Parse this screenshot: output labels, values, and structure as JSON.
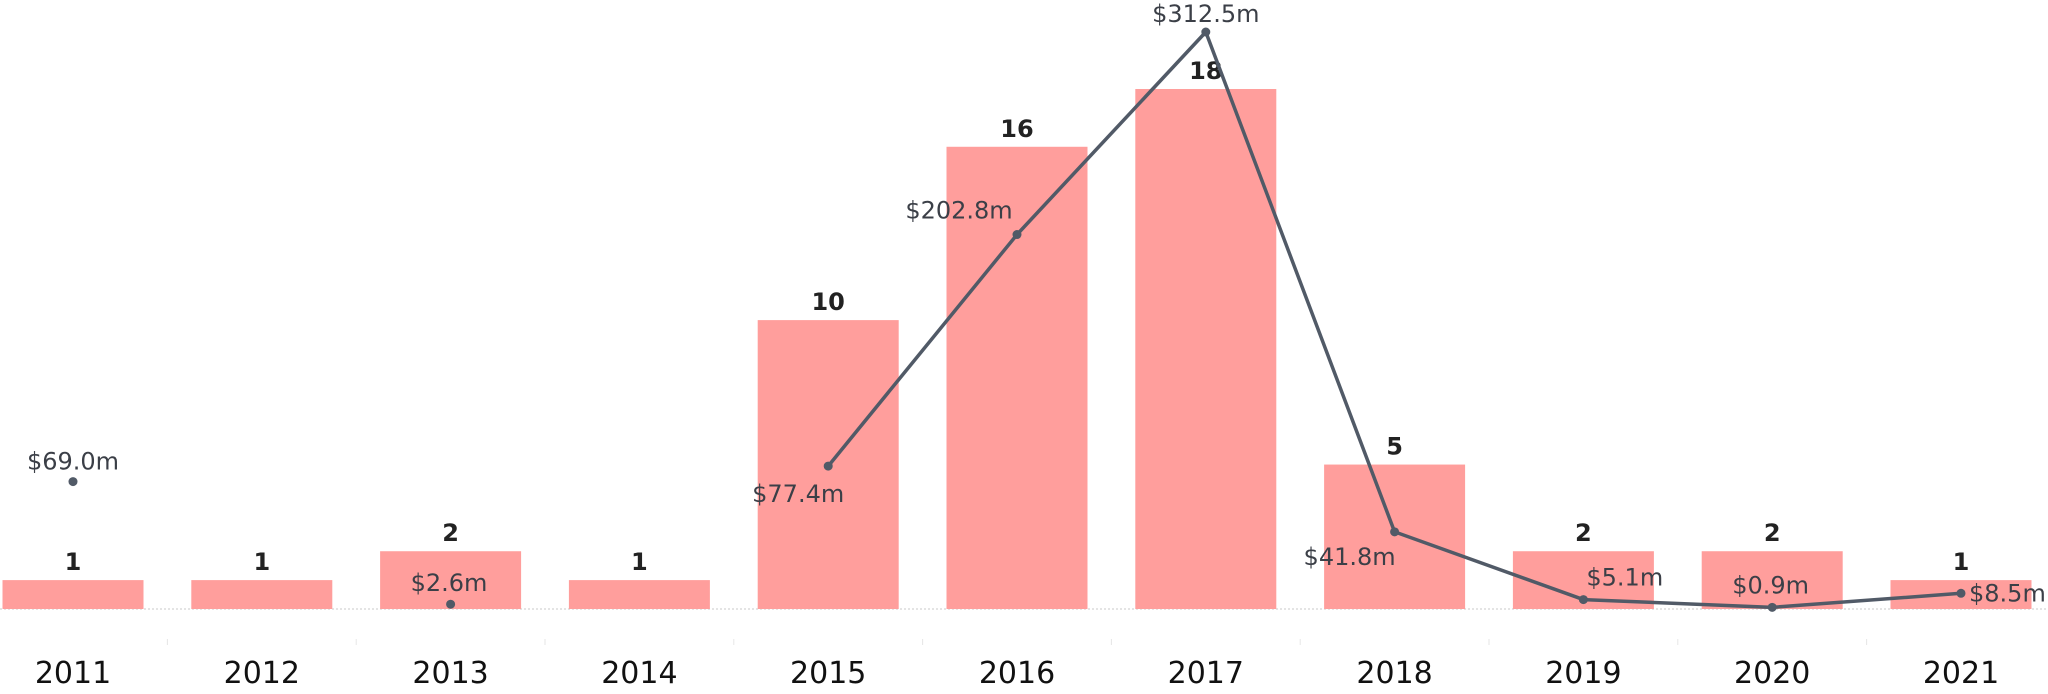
{
  "colors": {
    "bar": "#ff9e9c",
    "line": "#515a67",
    "baseline": "#c9c9c9",
    "text": "#222222"
  },
  "chart_data": {
    "type": "bar",
    "title": "",
    "xlabel": "",
    "ylabel": "",
    "categories": [
      "2011",
      "2012",
      "2013",
      "2014",
      "2015",
      "2016",
      "2017",
      "2018",
      "2019",
      "2020",
      "2021"
    ],
    "series": [
      {
        "type": "bar",
        "values": [
          1,
          1,
          2,
          1,
          10,
          16,
          18,
          5,
          2,
          2,
          1
        ],
        "labels": [
          "1",
          "1",
          "2",
          "1",
          "10",
          "16",
          "18",
          "5",
          "2",
          "2",
          "1"
        ]
      },
      {
        "type": "line",
        "values": [
          69.0,
          null,
          2.6,
          null,
          77.4,
          202.8,
          312.5,
          41.8,
          5.1,
          0.9,
          8.5
        ],
        "labels": [
          "$69.0m",
          "",
          "$2.6m",
          "",
          "$77.4m",
          "$202.8m",
          "$312.5m",
          "$41.8m",
          "$5.1m",
          "$0.9m",
          "$8.5m"
        ]
      }
    ],
    "ylim_bar": [
      0,
      18
    ],
    "ylim_line": [
      0,
      312.5
    ],
    "grid": false,
    "legend": "none"
  }
}
